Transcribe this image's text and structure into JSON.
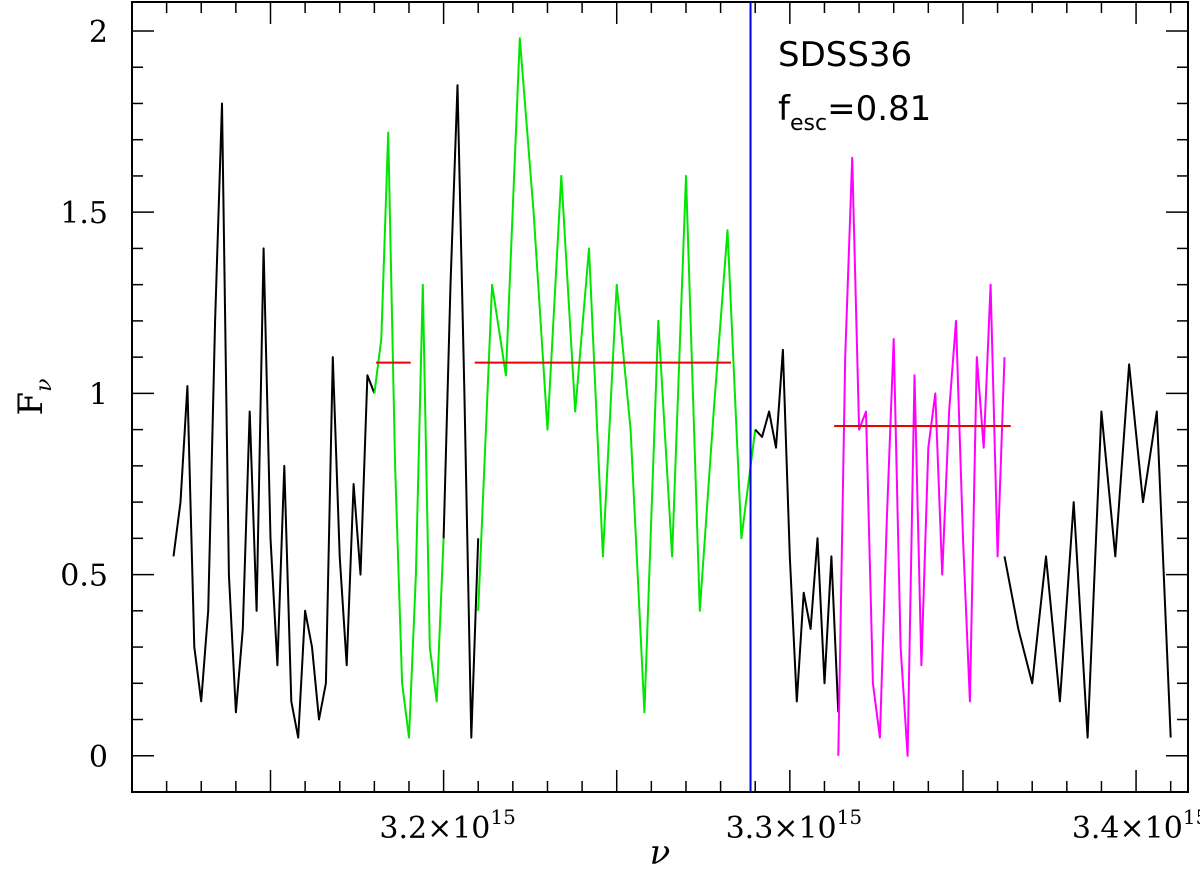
{
  "chart_data": {
    "type": "line",
    "title": "",
    "xlabel": "ν",
    "ylabel_main": "F",
    "ylabel_sub": "ν",
    "xlim": [
      3110000000000000.0,
      3415000000000000.0
    ],
    "ylim": [
      -0.1,
      2.08
    ],
    "grid": false,
    "x_ticks": [
      {
        "value": 3200000000000000.0,
        "mant": "3.2×10",
        "exp": "15"
      },
      {
        "value": 3300000000000000.0,
        "mant": "3.3×10",
        "exp": "15"
      },
      {
        "value": 3400000000000000.0,
        "mant": "3.4×10",
        "exp": "15"
      }
    ],
    "x_minor_step": 10000000000000.0,
    "y_ticks": [
      0,
      0.5,
      1,
      1.5,
      2
    ],
    "y_tick_labels": [
      "0",
      "0.5",
      "1",
      "1.5",
      "2"
    ],
    "y_minor_step": 0.1,
    "annotation": {
      "name": "SDSS36",
      "f_label": "f",
      "f_sub": "esc",
      "f_value": "=0.81"
    },
    "colors": {
      "black": "#000000",
      "green": "#00e600",
      "magenta": "#ff00ff",
      "red": "#ee0000",
      "blue": "#0000dd"
    },
    "vline": {
      "x": 3288650000000000.0,
      "color": "#0000dd"
    },
    "hlines": [
      {
        "x0": 3180500000000000.0,
        "x1": 3190500000000000.0,
        "y": 1.085,
        "color": "#ee0000"
      },
      {
        "x0": 3209000000000000.0,
        "x1": 3283000000000000.0,
        "y": 1.085,
        "color": "#ee0000"
      },
      {
        "x0": 3312800000000000.0,
        "x1": 3363800000000000.0,
        "y": 0.91,
        "color": "#ee0000"
      }
    ],
    "series": [
      {
        "color": "#000000",
        "xscale": 10000000000000.0,
        "x": [
          312.2,
          312.4,
          312.6,
          312.8,
          313.0,
          313.2,
          313.4,
          313.6,
          313.8,
          314.0,
          314.2,
          314.4,
          314.6,
          314.8,
          315.0,
          315.2,
          315.4,
          315.6,
          315.8,
          316.0,
          316.2,
          316.4,
          316.6,
          316.8,
          317.0,
          317.2,
          317.4,
          317.6,
          317.8,
          318.0
        ],
        "y": [
          0.55,
          0.7,
          1.02,
          0.3,
          0.15,
          0.4,
          1.2,
          1.8,
          0.5,
          0.12,
          0.35,
          0.95,
          0.4,
          1.4,
          0.6,
          0.25,
          0.8,
          0.15,
          0.05,
          0.4,
          0.3,
          0.1,
          0.2,
          1.1,
          0.55,
          0.25,
          0.75,
          0.5,
          1.05,
          1.0
        ]
      },
      {
        "color": "#00e600",
        "xscale": 10000000000000.0,
        "x": [
          318.0,
          318.2,
          318.4,
          318.6,
          318.8,
          319.0,
          319.2,
          319.4,
          319.6,
          319.8,
          320.0
        ],
        "y": [
          1.0,
          1.15,
          1.72,
          0.8,
          0.2,
          0.05,
          0.5,
          1.3,
          0.3,
          0.15,
          0.6
        ]
      },
      {
        "color": "#000000",
        "xscale": 10000000000000.0,
        "x": [
          320.0,
          320.2,
          320.4,
          320.6,
          320.8,
          321.0
        ],
        "y": [
          0.6,
          1.3,
          1.85,
          1.0,
          0.05,
          0.6
        ]
      },
      {
        "color": "#00e600",
        "xscale": 10000000000000.0,
        "x": [
          321.0,
          321.4,
          321.8,
          322.2,
          322.6,
          323.0,
          323.4,
          323.8,
          324.2,
          324.6,
          325.0,
          325.4,
          325.8,
          326.2,
          326.6,
          327.0,
          327.4,
          327.8,
          328.2,
          328.6,
          329.0
        ],
        "y": [
          0.4,
          1.3,
          1.05,
          1.98,
          1.5,
          0.9,
          1.6,
          0.95,
          1.4,
          0.55,
          1.3,
          0.9,
          0.12,
          1.2,
          0.55,
          1.6,
          0.4,
          0.95,
          1.45,
          0.6,
          0.9
        ]
      },
      {
        "color": "#000000",
        "xscale": 10000000000000.0,
        "x": [
          329.0,
          329.2,
          329.4,
          329.6,
          329.8,
          330.0,
          330.2,
          330.4,
          330.6,
          330.8,
          331.0,
          331.2,
          331.4
        ],
        "y": [
          0.9,
          0.88,
          0.95,
          0.85,
          1.12,
          0.55,
          0.15,
          0.45,
          0.35,
          0.6,
          0.2,
          0.55,
          0.12
        ]
      },
      {
        "color": "#ff00ff",
        "xscale": 10000000000000.0,
        "x": [
          331.4,
          331.6,
          331.8,
          332.0,
          332.2,
          332.4,
          332.6,
          332.8,
          333.0,
          333.2,
          333.4,
          333.6,
          333.8,
          334.0,
          334.2,
          334.4,
          334.6,
          334.8,
          335.0,
          335.2,
          335.4,
          335.6,
          335.8,
          336.0,
          336.2
        ],
        "y": [
          0.0,
          1.1,
          1.65,
          0.9,
          0.95,
          0.2,
          0.05,
          0.65,
          1.15,
          0.3,
          0.0,
          1.05,
          0.25,
          0.85,
          1.0,
          0.5,
          0.95,
          1.2,
          0.6,
          0.15,
          1.1,
          0.85,
          1.3,
          0.55,
          1.1
        ]
      },
      {
        "color": "#000000",
        "xscale": 10000000000000.0,
        "x": [
          336.2,
          336.6,
          337.0,
          337.4,
          337.8,
          338.2,
          338.6,
          339.0,
          339.4,
          339.8,
          340.2,
          340.6,
          341.0
        ],
        "y": [
          0.55,
          0.35,
          0.2,
          0.55,
          0.15,
          0.7,
          0.05,
          0.95,
          0.55,
          1.08,
          0.7,
          0.95,
          0.05
        ]
      }
    ]
  }
}
